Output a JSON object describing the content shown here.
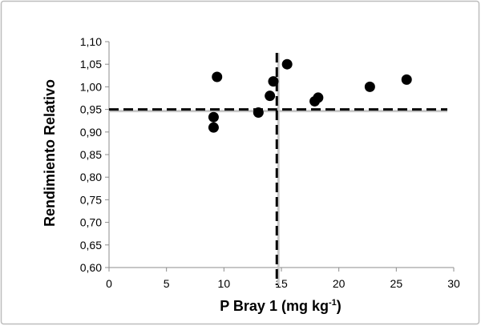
{
  "chart_data": {
    "type": "scatter",
    "xlabel": "P Bray 1 (mg kg",
    "xlabel_superscript": "-1",
    "xlabel_close": ")",
    "ylabel": "Rendimiento Relativo",
    "xlim": [
      0,
      30
    ],
    "ylim": [
      0.6,
      1.1
    ],
    "x_ticks": [
      "0",
      "5",
      "10",
      "15",
      "20",
      "25",
      "30"
    ],
    "y_ticks": [
      "0,60",
      "0,65",
      "0,70",
      "0,75",
      "0,80",
      "0,85",
      "0,90",
      "0,95",
      "1,00",
      "1,05",
      "1,10"
    ],
    "points": [
      {
        "x": 9.1,
        "y": 0.933
      },
      {
        "x": 9.1,
        "y": 0.91
      },
      {
        "x": 9.4,
        "y": 1.022
      },
      {
        "x": 13.0,
        "y": 0.943
      },
      {
        "x": 14.0,
        "y": 0.98
      },
      {
        "x": 14.3,
        "y": 1.012
      },
      {
        "x": 15.5,
        "y": 1.05
      },
      {
        "x": 17.9,
        "y": 0.968
      },
      {
        "x": 18.2,
        "y": 0.976
      },
      {
        "x": 22.7,
        "y": 1.0
      },
      {
        "x": 25.9,
        "y": 1.016
      }
    ],
    "threshold_y": 0.95,
    "threshold_x": 14.6,
    "colors": {
      "marker": "#000000",
      "axis": "#8c8c8c",
      "frame": "#bdbdbd",
      "guide": "#000000"
    }
  }
}
